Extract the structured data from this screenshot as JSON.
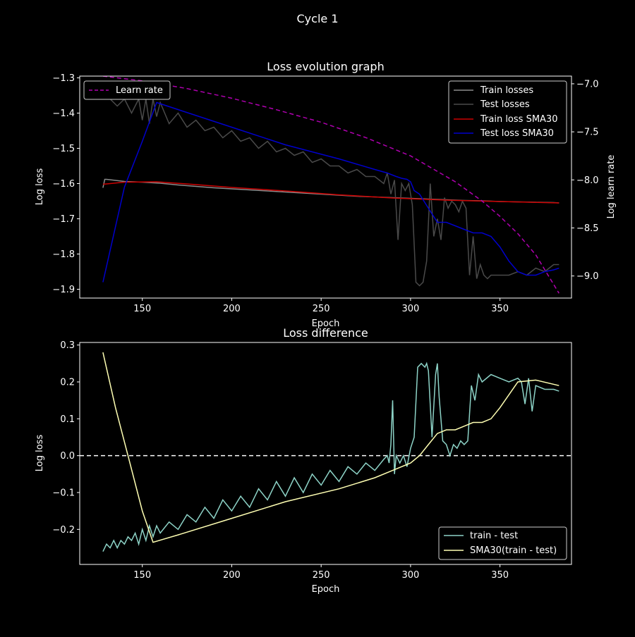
{
  "figure": {
    "suptitle": "Cycle 1"
  },
  "chart_data": [
    {
      "type": "line",
      "title": "Loss evolution graph",
      "xlabel": "Epoch",
      "ylabel": "Log loss",
      "ylabel_right": "Log learn rate",
      "xlim": [
        115,
        390
      ],
      "ylim": [
        -1.925,
        -1.295
      ],
      "ylim_right": [
        -9.23,
        -6.92
      ],
      "xticks": [
        150,
        200,
        250,
        300,
        350
      ],
      "yticks": [
        -1.3,
        -1.4,
        -1.5,
        -1.6,
        -1.7,
        -1.8,
        -1.9
      ],
      "yticks_right": [
        -7.0,
        -7.5,
        -8.0,
        -8.5,
        -9.0
      ],
      "grid": false,
      "legend_right": {
        "placement": "upper right",
        "entries": [
          "Train losses",
          "Test losses",
          "Train loss SMA30",
          "Test loss SMA30"
        ]
      },
      "legend_left": {
        "placement": "upper left",
        "entries": [
          "Learn rate"
        ]
      },
      "series": [
        {
          "name": "Train losses",
          "color": "#8c8c8c",
          "axis": "left",
          "x": [
            128,
            129,
            130,
            140,
            150,
            160,
            170,
            180,
            190,
            200,
            210,
            220,
            230,
            240,
            250,
            260,
            270,
            280,
            290,
            300,
            310,
            320,
            330,
            340,
            350,
            360,
            370,
            380,
            383
          ],
          "y": [
            -1.612,
            -1.588,
            -1.588,
            -1.594,
            -1.596,
            -1.599,
            -1.604,
            -1.608,
            -1.612,
            -1.615,
            -1.618,
            -1.621,
            -1.624,
            -1.627,
            -1.63,
            -1.633,
            -1.636,
            -1.638,
            -1.64,
            -1.642,
            -1.644,
            -1.646,
            -1.648,
            -1.649,
            -1.651,
            -1.652,
            -1.653,
            -1.654,
            -1.655
          ]
        },
        {
          "name": "Test losses",
          "color": "#4a4a4a",
          "axis": "left",
          "x": [
            128,
            132,
            136,
            140,
            144,
            148,
            150,
            152,
            154,
            156,
            158,
            160,
            165,
            170,
            175,
            180,
            185,
            190,
            195,
            200,
            205,
            210,
            215,
            220,
            225,
            230,
            235,
            240,
            245,
            250,
            255,
            260,
            265,
            270,
            275,
            280,
            285,
            287,
            289,
            291,
            293,
            295,
            297,
            299,
            301,
            303,
            305,
            307,
            309,
            311,
            313,
            315,
            317,
            319,
            321,
            323,
            325,
            327,
            329,
            331,
            333,
            335,
            337,
            339,
            341,
            343,
            345,
            350,
            355,
            360,
            365,
            370,
            375,
            380,
            383
          ],
          "y": [
            -1.35,
            -1.36,
            -1.38,
            -1.36,
            -1.4,
            -1.36,
            -1.42,
            -1.36,
            -1.43,
            -1.36,
            -1.41,
            -1.37,
            -1.43,
            -1.4,
            -1.44,
            -1.42,
            -1.45,
            -1.44,
            -1.47,
            -1.45,
            -1.48,
            -1.47,
            -1.5,
            -1.48,
            -1.51,
            -1.5,
            -1.52,
            -1.51,
            -1.54,
            -1.53,
            -1.55,
            -1.55,
            -1.57,
            -1.56,
            -1.58,
            -1.58,
            -1.6,
            -1.57,
            -1.63,
            -1.59,
            -1.76,
            -1.6,
            -1.62,
            -1.6,
            -1.66,
            -1.88,
            -1.89,
            -1.88,
            -1.82,
            -1.6,
            -1.75,
            -1.7,
            -1.76,
            -1.64,
            -1.67,
            -1.65,
            -1.66,
            -1.68,
            -1.65,
            -1.67,
            -1.86,
            -1.75,
            -1.87,
            -1.83,
            -1.86,
            -1.87,
            -1.86,
            -1.86,
            -1.86,
            -1.85,
            -1.86,
            -1.84,
            -1.85,
            -1.83,
            -1.83
          ]
        },
        {
          "name": "Train loss SMA30",
          "color": "#cc0000",
          "axis": "left",
          "x": [
            128,
            140,
            158,
            180,
            200,
            230,
            260,
            290,
            320,
            350,
            383
          ],
          "y": [
            -1.602,
            -1.596,
            -1.595,
            -1.603,
            -1.611,
            -1.621,
            -1.632,
            -1.641,
            -1.647,
            -1.651,
            -1.655
          ]
        },
        {
          "name": "Test loss SMA30",
          "color": "#0000cc",
          "axis": "left",
          "x": [
            128,
            140,
            150,
            158,
            170,
            200,
            230,
            260,
            280,
            287,
            290,
            292,
            295,
            298,
            300,
            302,
            305,
            310,
            315,
            320,
            325,
            330,
            335,
            340,
            345,
            350,
            355,
            360,
            365,
            370,
            375,
            380,
            383
          ],
          "y": [
            -1.88,
            -1.61,
            -1.48,
            -1.37,
            -1.39,
            -1.44,
            -1.49,
            -1.53,
            -1.56,
            -1.57,
            -1.576,
            -1.58,
            -1.585,
            -1.588,
            -1.595,
            -1.62,
            -1.63,
            -1.67,
            -1.71,
            -1.71,
            -1.72,
            -1.73,
            -1.74,
            -1.74,
            -1.75,
            -1.78,
            -1.82,
            -1.85,
            -1.86,
            -1.86,
            -1.85,
            -1.845,
            -1.84
          ]
        },
        {
          "name": "Learn rate",
          "color": "#b000b0",
          "axis": "right",
          "dashed": true,
          "x": [
            128,
            150,
            175,
            200,
            225,
            250,
            275,
            300,
            325,
            340,
            350,
            360,
            370,
            383
          ],
          "y": [
            -6.92,
            -6.97,
            -7.05,
            -7.15,
            -7.27,
            -7.4,
            -7.56,
            -7.75,
            -8.02,
            -8.22,
            -8.38,
            -8.56,
            -8.78,
            -9.18
          ]
        }
      ]
    },
    {
      "type": "line",
      "title": "Loss difference",
      "xlabel": "Epoch",
      "ylabel": "Log loss",
      "xlim": [
        115,
        390
      ],
      "ylim": [
        -0.295,
        0.307
      ],
      "xticks": [
        150,
        200,
        250,
        300,
        350
      ],
      "yticks": [
        0.3,
        0.2,
        0.1,
        0.0,
        -0.1,
        -0.2
      ],
      "grid": false,
      "hline": {
        "y": 0.0,
        "color": "#ffffff",
        "dashed": true
      },
      "legend": {
        "placement": "lower right",
        "entries": [
          "train - test",
          "SMA30(train - test)"
        ]
      },
      "series": [
        {
          "name": "train - test",
          "color": "#8dd3c7",
          "x": [
            128,
            130,
            132,
            134,
            136,
            138,
            140,
            142,
            144,
            146,
            148,
            150,
            152,
            154,
            156,
            158,
            160,
            165,
            170,
            175,
            180,
            185,
            190,
            195,
            200,
            205,
            210,
            215,
            220,
            225,
            230,
            235,
            240,
            245,
            250,
            255,
            260,
            265,
            270,
            275,
            280,
            285,
            287,
            288,
            289,
            290,
            291,
            292,
            294,
            296,
            298,
            300,
            302,
            304,
            306,
            308,
            309,
            310,
            312,
            314,
            315,
            316,
            318,
            320,
            322,
            324,
            326,
            328,
            330,
            332,
            334,
            336,
            338,
            340,
            345,
            350,
            355,
            360,
            362,
            364,
            366,
            368,
            370,
            375,
            380,
            383
          ],
          "y": [
            -0.26,
            -0.24,
            -0.25,
            -0.23,
            -0.25,
            -0.23,
            -0.24,
            -0.22,
            -0.23,
            -0.21,
            -0.24,
            -0.2,
            -0.23,
            -0.19,
            -0.22,
            -0.19,
            -0.21,
            -0.18,
            -0.2,
            -0.16,
            -0.18,
            -0.14,
            -0.17,
            -0.12,
            -0.15,
            -0.11,
            -0.14,
            -0.09,
            -0.12,
            -0.07,
            -0.11,
            -0.06,
            -0.1,
            -0.05,
            -0.08,
            -0.04,
            -0.07,
            -0.03,
            -0.05,
            -0.02,
            -0.04,
            -0.01,
            0.0,
            -0.02,
            0.03,
            0.15,
            -0.05,
            0.0,
            -0.02,
            0.0,
            -0.03,
            0.02,
            0.05,
            0.24,
            0.25,
            0.24,
            0.25,
            0.23,
            0.05,
            0.22,
            0.25,
            0.16,
            0.04,
            0.03,
            0.0,
            0.03,
            0.02,
            0.04,
            0.03,
            0.04,
            0.19,
            0.15,
            0.22,
            0.2,
            0.22,
            0.21,
            0.2,
            0.21,
            0.2,
            0.14,
            0.21,
            0.12,
            0.19,
            0.18,
            0.18,
            0.175
          ]
        },
        {
          "name": "SMA30(train - test)",
          "color": "#ffffb3",
          "x": [
            128,
            135,
            142,
            150,
            156,
            170,
            200,
            230,
            260,
            280,
            290,
            300,
            305,
            310,
            315,
            320,
            325,
            330,
            335,
            340,
            345,
            350,
            360,
            370,
            383
          ],
          "y": [
            0.28,
            0.13,
            0.0,
            -0.15,
            -0.235,
            -0.215,
            -0.17,
            -0.125,
            -0.09,
            -0.06,
            -0.04,
            -0.02,
            0.0,
            0.03,
            0.06,
            0.07,
            0.07,
            0.08,
            0.09,
            0.09,
            0.1,
            0.13,
            0.2,
            0.205,
            0.19
          ]
        }
      ]
    }
  ]
}
